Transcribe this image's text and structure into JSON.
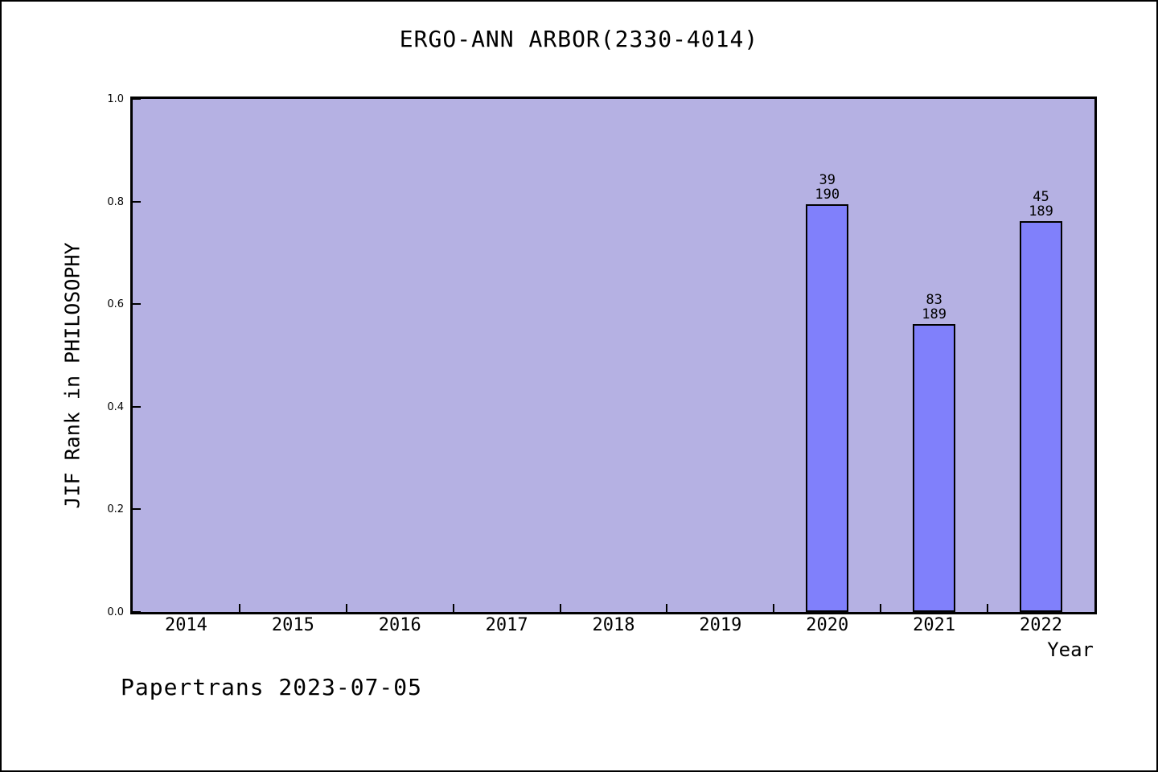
{
  "page": {
    "footer": "Papertrans 2023-07-05"
  },
  "colors": {
    "page_bg": "#ffffff",
    "plot_bg": "#b5b1e3",
    "bar_fill": "#8080fb",
    "bar_border": "#000000",
    "text": "#000000"
  },
  "chart_data": {
    "type": "bar",
    "title": "ERGO-ANN ARBOR(2330-4014)",
    "xlabel": "Year",
    "ylabel": "JIF Rank in PHILOSOPHY",
    "categories": [
      "2014",
      "2015",
      "2016",
      "2017",
      "2018",
      "2019",
      "2020",
      "2021",
      "2022"
    ],
    "values": [
      null,
      null,
      null,
      null,
      null,
      null,
      0.7947,
      0.5608,
      0.7619
    ],
    "bars": [
      {
        "year": "2020",
        "rank": "39",
        "total": "190",
        "value": 0.7947
      },
      {
        "year": "2021",
        "rank": "83",
        "total": "189",
        "value": 0.5608
      },
      {
        "year": "2022",
        "rank": "45",
        "total": "189",
        "value": 0.7619
      }
    ],
    "ylim": [
      0.0,
      1.0
    ],
    "ytick_labels": [
      "0.0",
      "0.2",
      "0.4",
      "0.6",
      "0.8",
      "1.0"
    ],
    "grid": false,
    "legend": null,
    "bar_width_fraction": 0.4,
    "tick_direction": "in"
  }
}
